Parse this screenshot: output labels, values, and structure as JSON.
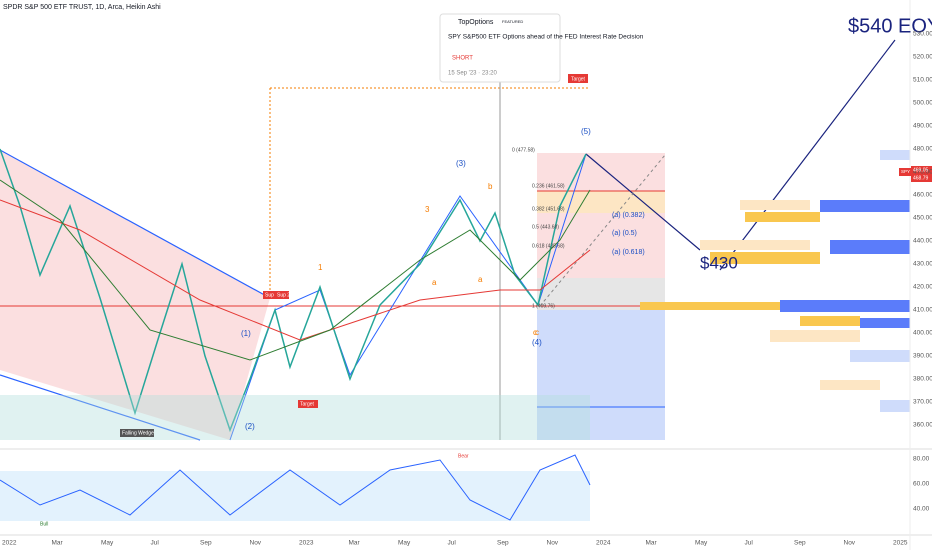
{
  "header": {
    "title": "SPDR S&P 500 ETF TRUST, 1D, Arca, Heikin Ashi"
  },
  "popup": {
    "brand": "TopOptions",
    "badge": "FEATURED",
    "headline": "SPY S&P500 ETF Options ahead of the FED Interest Rate Decision",
    "side": "SHORT",
    "date": "15 Sep '23 · 23:20"
  },
  "annotations": {
    "eoy": "$540 EOY",
    "target_price": "$430",
    "target1": "Target",
    "target2": "Target",
    "sup": "Sup",
    "sup2": "Sup 2",
    "wedge": "Falling Wedge",
    "waves": [
      "(1)",
      "(2)",
      "(3)",
      "(4)",
      "(5)"
    ],
    "minor": [
      "1",
      "3",
      "a",
      "b",
      "c",
      "a",
      "c"
    ],
    "fib": [
      "0 (477.58)",
      "0.236 (461.58)",
      "0.382 (451.68)",
      "0.5 (443.68)",
      "0.618 (435.68)",
      "1 (409.76)"
    ],
    "abc": [
      "(a) (0.382)",
      "(a) (0.5)",
      "(a) (0.618)"
    ],
    "bull": "Bull",
    "bear": "Bear"
  },
  "price_tag": {
    "symbol": "SPY",
    "last": "469.05",
    "prev": "468.79"
  },
  "price_axis": [
    "530.00",
    "520.00",
    "510.00",
    "500.00",
    "490.00",
    "480.00",
    "470.00",
    "460.00",
    "450.00",
    "440.00",
    "430.00",
    "420.00",
    "410.00",
    "400.00",
    "390.00",
    "380.00",
    "370.00",
    "360.00"
  ],
  "rsi_axis": [
    "80.00",
    "60.00",
    "40.00"
  ],
  "time_axis": [
    "2022",
    "Mar",
    "May",
    "Jul",
    "Sep",
    "Nov",
    "2023",
    "Mar",
    "May",
    "Jul",
    "Sep",
    "Nov",
    "2024",
    "Mar",
    "May",
    "Jul",
    "Sep",
    "Nov",
    "2025"
  ]
}
